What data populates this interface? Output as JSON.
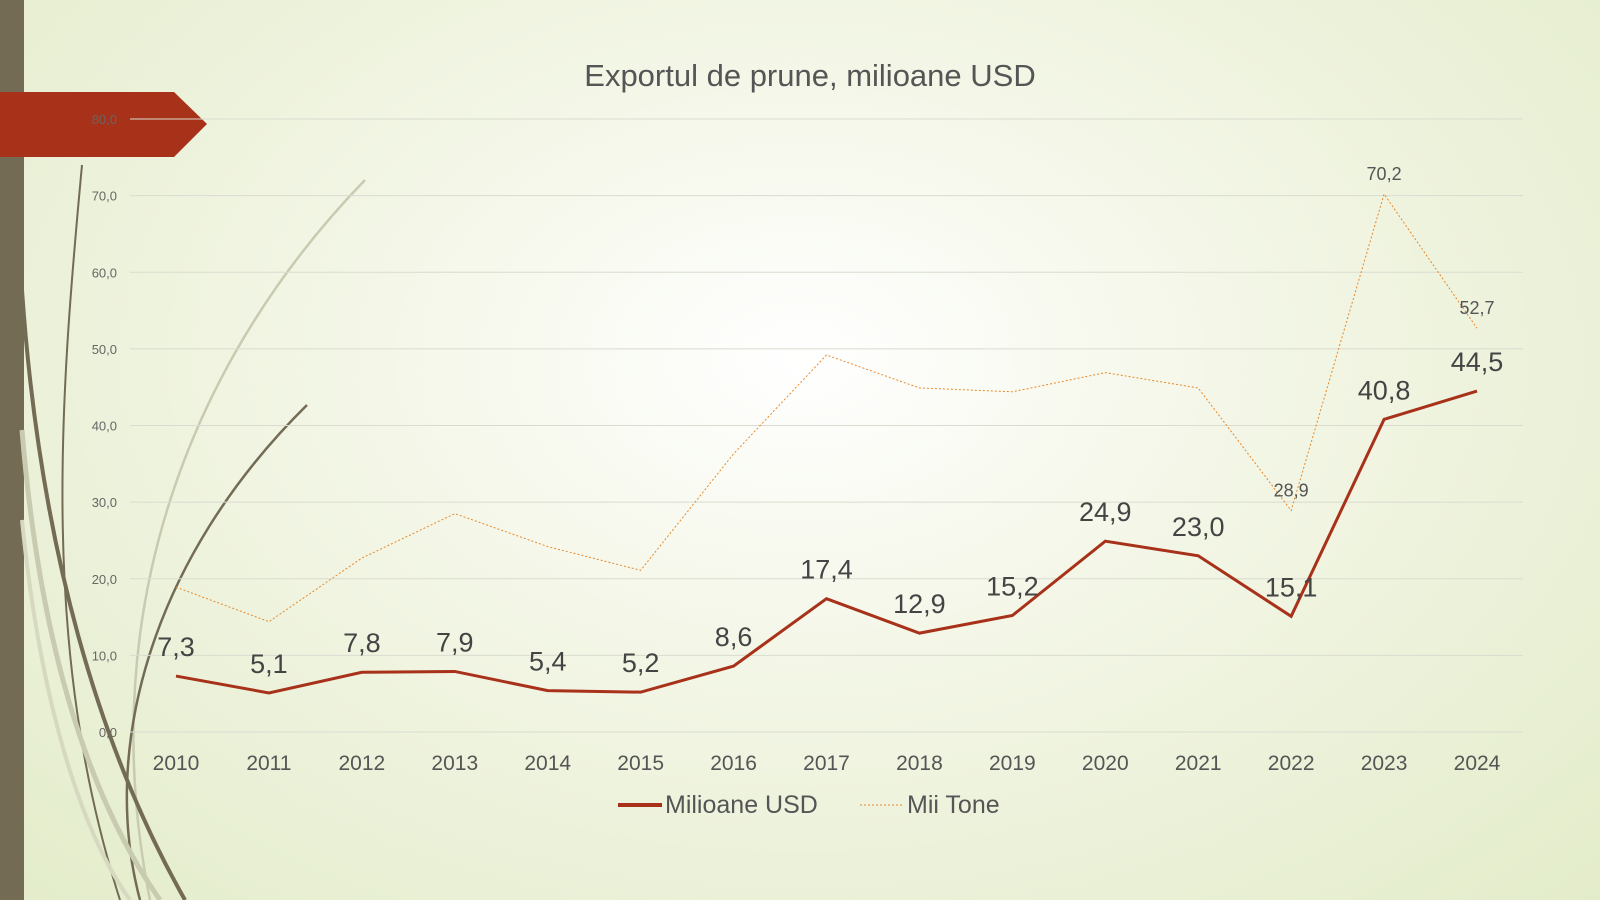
{
  "chart_data": {
    "type": "line",
    "title": "Exportul de prune, milioane USD",
    "categories": [
      "2010",
      "2011",
      "2012",
      "2013",
      "2014",
      "2015",
      "2016",
      "2017",
      "2018",
      "2019",
      "2020",
      "2021",
      "2022",
      "2023",
      "2024"
    ],
    "ylim": [
      0,
      80
    ],
    "yticks": [
      "0,0",
      "10,0",
      "20,0",
      "30,0",
      "40,0",
      "50,0",
      "60,0",
      "70,0",
      "80,0"
    ],
    "grid": true,
    "legend": "bottom",
    "series": [
      {
        "name": "Milioane USD",
        "color": "#a8311a",
        "style": "solid",
        "values": [
          7.3,
          5.1,
          7.8,
          7.9,
          5.4,
          5.2,
          8.6,
          17.4,
          12.9,
          15.2,
          24.9,
          23.0,
          15.1,
          40.8,
          44.5
        ],
        "labels": [
          "7,3",
          "5,1",
          "7,8",
          "7,9",
          "5,4",
          "5,2",
          "8,6",
          "17,4",
          "12,9",
          "15,2",
          "24,9",
          "23,0",
          "15,1",
          "40,8",
          "44,5"
        ]
      },
      {
        "name": "Mii Tone",
        "color": "#e8892a",
        "style": "dotted",
        "values": [
          18.9,
          14.4,
          22.7,
          28.5,
          24.2,
          21.1,
          36.3,
          49.2,
          44.9,
          44.4,
          46.9,
          44.9,
          28.9,
          70.2,
          52.7
        ],
        "labels": [
          "",
          "",
          "",
          "",
          "",
          "",
          "",
          "",
          "",
          "",
          "",
          "",
          "28,9",
          "70,2",
          "52,7"
        ]
      }
    ]
  },
  "colors": {
    "accent": "#a8311a",
    "sidebar": "#736b53"
  }
}
